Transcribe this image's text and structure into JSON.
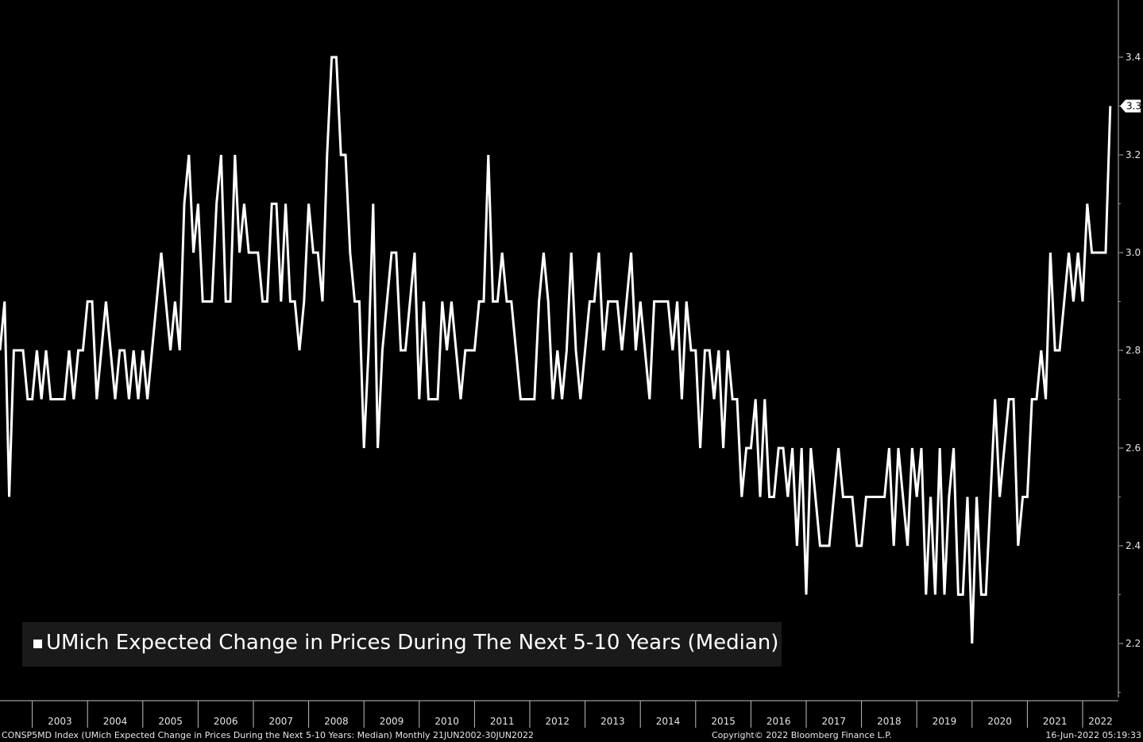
{
  "chart_data": {
    "type": "line",
    "title": "",
    "xlabel": "",
    "ylabel": "",
    "ylim": [
      2.1,
      3.5
    ],
    "x_range": [
      "2002-06",
      "2022-06"
    ],
    "grid": false,
    "legend_position": "bottom-left",
    "line_color": "#ffffff",
    "background": "#000000",
    "y_ticks": [
      "2.2",
      "2.4",
      "2.6",
      "2.8",
      "3.0",
      "3.2",
      "3.4"
    ],
    "x_ticks": [
      "2003",
      "2004",
      "2005",
      "2006",
      "2007",
      "2008",
      "2009",
      "2010",
      "2011",
      "2012",
      "2013",
      "2014",
      "2015",
      "2016",
      "2017",
      "2018",
      "2019",
      "2020",
      "2021",
      "2022"
    ],
    "last_value_label": "3.3",
    "series": [
      {
        "name": "UMich Expected Change in Prices During The Next 5-10 Years (Median)",
        "start": "2002-06",
        "frequency": "monthly",
        "values": [
          2.8,
          2.9,
          2.5,
          2.8,
          2.8,
          2.8,
          2.7,
          2.7,
          2.8,
          2.7,
          2.8,
          2.7,
          2.7,
          2.7,
          2.7,
          2.8,
          2.7,
          2.8,
          2.8,
          2.9,
          2.9,
          2.7,
          2.8,
          2.9,
          2.8,
          2.7,
          2.8,
          2.8,
          2.7,
          2.8,
          2.7,
          2.8,
          2.7,
          2.8,
          2.9,
          3.0,
          2.9,
          2.8,
          2.9,
          2.8,
          3.1,
          3.2,
          3.0,
          3.1,
          2.9,
          2.9,
          2.9,
          3.1,
          3.2,
          2.9,
          2.9,
          3.2,
          3.0,
          3.1,
          3.0,
          3.0,
          3.0,
          2.9,
          2.9,
          3.1,
          3.1,
          2.9,
          3.1,
          2.9,
          2.9,
          2.8,
          2.9,
          3.1,
          3.0,
          3.0,
          2.9,
          3.2,
          3.4,
          3.4,
          3.2,
          3.2,
          3.0,
          2.9,
          2.9,
          2.6,
          2.8,
          3.1,
          2.6,
          2.8,
          2.9,
          3.0,
          3.0,
          2.8,
          2.8,
          2.9,
          3.0,
          2.7,
          2.9,
          2.7,
          2.7,
          2.7,
          2.9,
          2.8,
          2.9,
          2.8,
          2.7,
          2.8,
          2.8,
          2.8,
          2.9,
          2.9,
          3.2,
          2.9,
          2.9,
          3.0,
          2.9,
          2.9,
          2.8,
          2.7,
          2.7,
          2.7,
          2.7,
          2.9,
          3.0,
          2.9,
          2.7,
          2.8,
          2.7,
          2.8,
          3.0,
          2.8,
          2.7,
          2.8,
          2.9,
          2.9,
          3.0,
          2.8,
          2.9,
          2.9,
          2.9,
          2.8,
          2.9,
          3.0,
          2.8,
          2.9,
          2.8,
          2.7,
          2.9,
          2.9,
          2.9,
          2.9,
          2.8,
          2.9,
          2.7,
          2.9,
          2.8,
          2.8,
          2.6,
          2.8,
          2.8,
          2.7,
          2.8,
          2.6,
          2.8,
          2.7,
          2.7,
          2.5,
          2.6,
          2.6,
          2.7,
          2.5,
          2.7,
          2.5,
          2.5,
          2.6,
          2.6,
          2.5,
          2.6,
          2.4,
          2.6,
          2.3,
          2.6,
          2.5,
          2.4,
          2.4,
          2.4,
          2.5,
          2.6,
          2.5,
          2.5,
          2.5,
          2.4,
          2.4,
          2.5,
          2.5,
          2.5,
          2.5,
          2.5,
          2.6,
          2.4,
          2.6,
          2.5,
          2.4,
          2.6,
          2.5,
          2.6,
          2.3,
          2.5,
          2.3,
          2.6,
          2.3,
          2.5,
          2.6,
          2.3,
          2.3,
          2.5,
          2.2,
          2.5,
          2.3,
          2.3,
          2.5,
          2.7,
          2.5,
          2.6,
          2.7,
          2.7,
          2.4,
          2.5,
          2.5,
          2.7,
          2.7,
          2.8,
          2.7,
          3.0,
          2.8,
          2.8,
          2.9,
          3.0,
          2.9,
          3.0,
          2.9,
          3.1,
          3.0,
          3.0,
          3.0,
          3.0,
          3.3
        ]
      }
    ]
  },
  "footer": {
    "left": "CONSP5MD Index (UMich Expected Change in Prices During the Next 5-10 Years: Median)  Monthly 21JUN2002-30JUN2022",
    "center": "Copyright© 2022 Bloomberg Finance L.P.",
    "right": "16-Jun-2022 05:19:33"
  }
}
